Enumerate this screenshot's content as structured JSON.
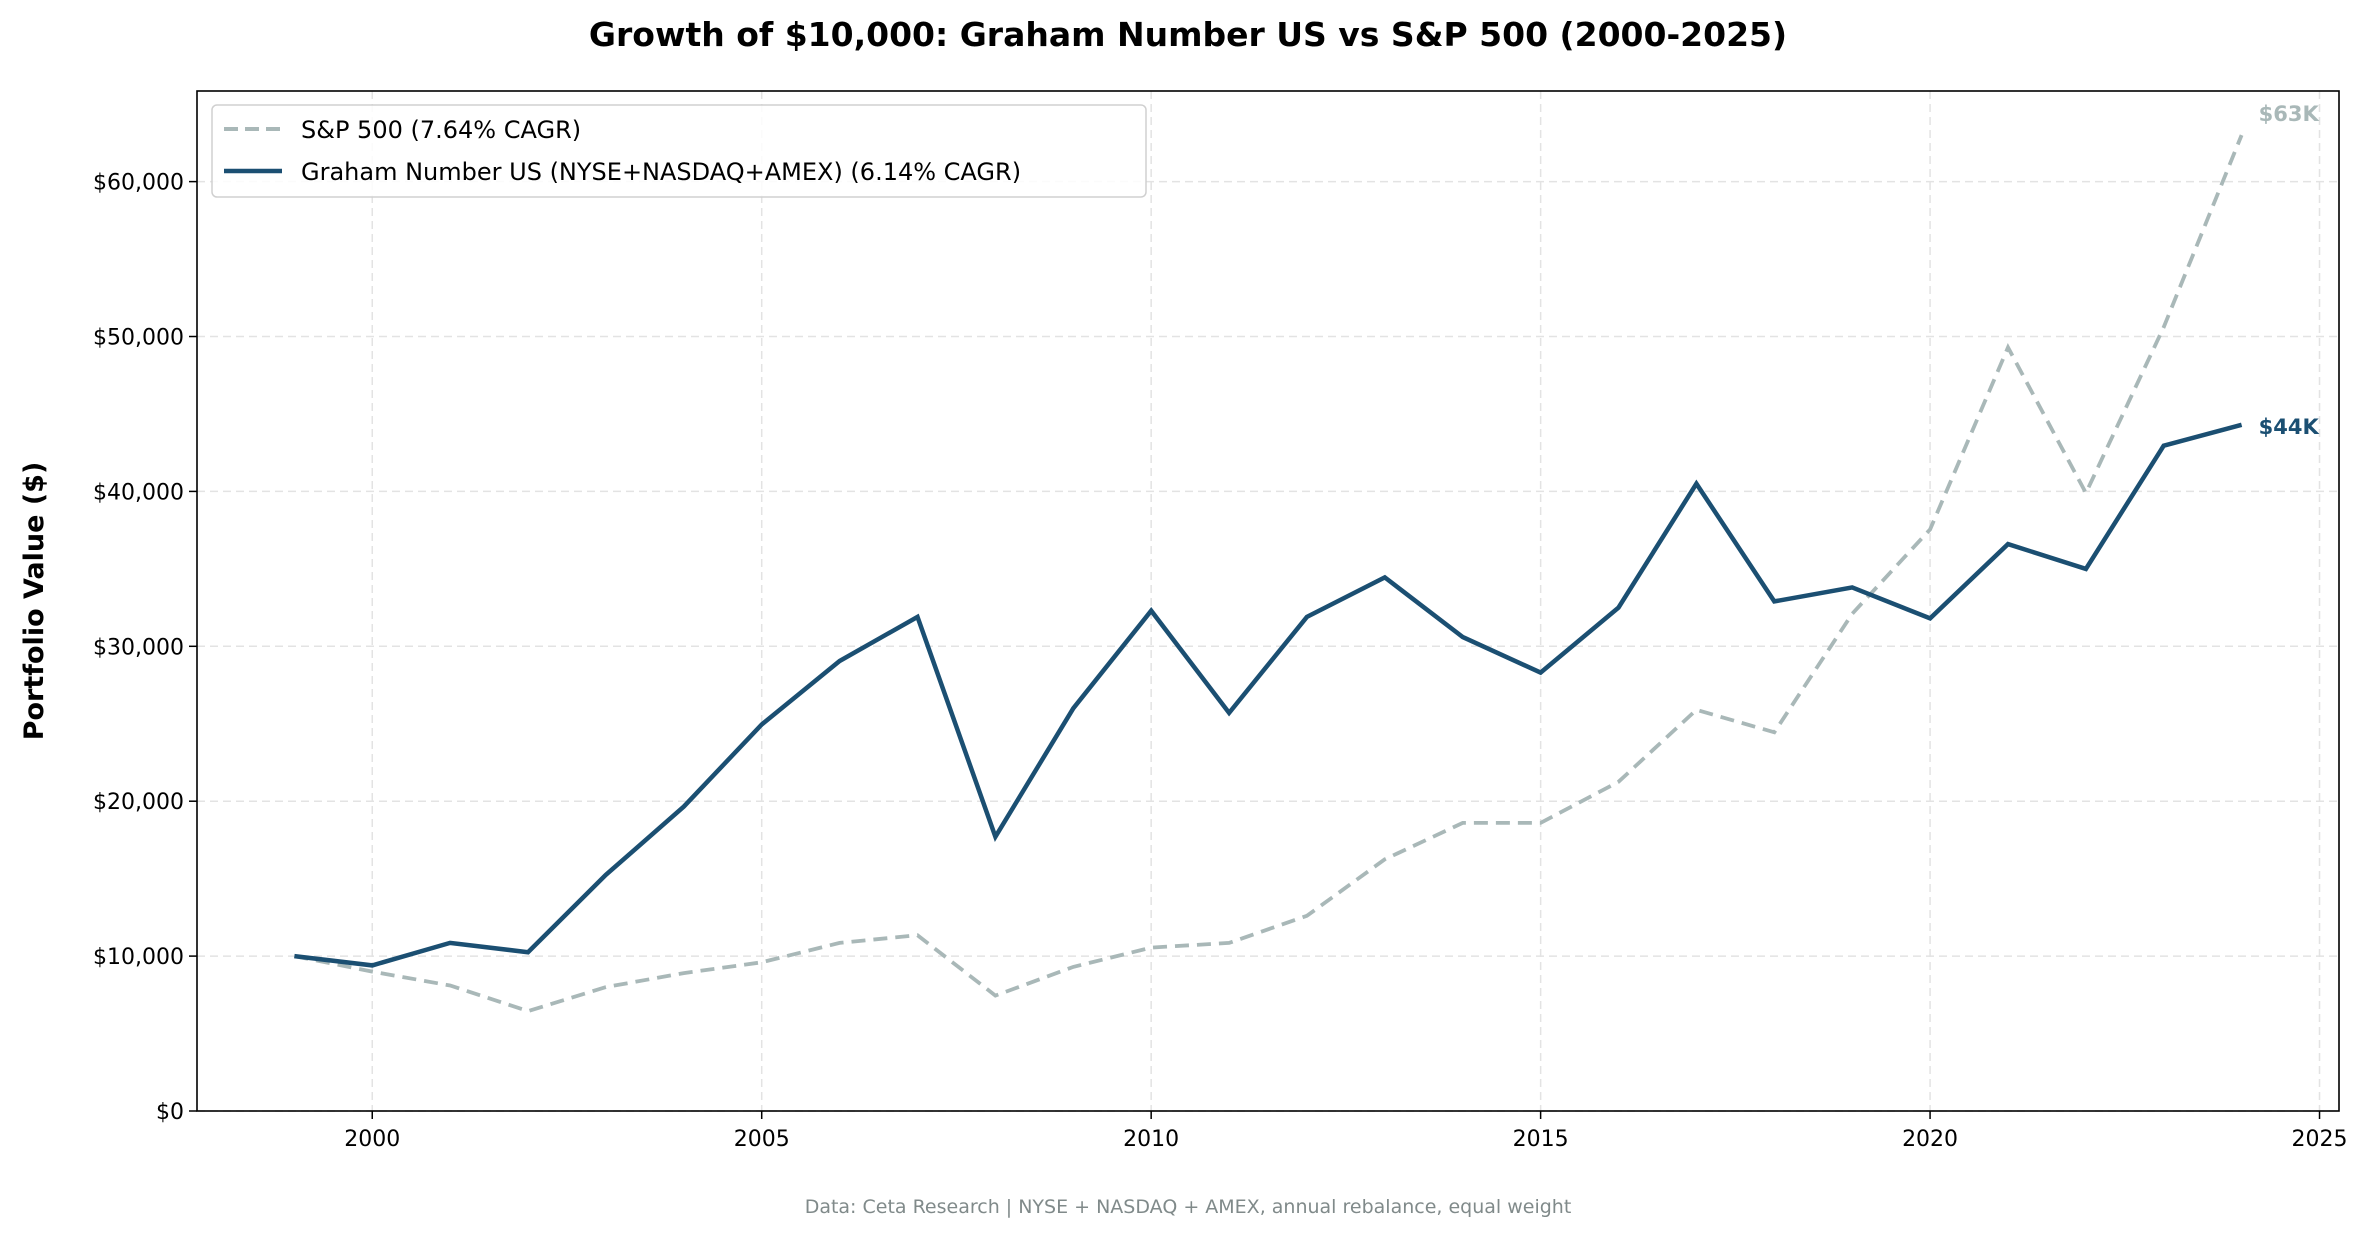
{
  "chart_data": {
    "type": "line",
    "title": "Growth of $10,000: Graham Number US vs S&P 500 (2000-2025)",
    "xlabel": "",
    "ylabel": "Portfolio Value ($)",
    "xlim": [
      1997.75,
      2025.25
    ],
    "ylim": [
      0,
      65850
    ],
    "x_ticks": [
      2000,
      2005,
      2010,
      2015,
      2020,
      2025
    ],
    "x_tick_labels": [
      "2000",
      "2005",
      "2010",
      "2015",
      "2020",
      "2025"
    ],
    "y_ticks": [
      0,
      10000,
      20000,
      30000,
      40000,
      50000,
      60000
    ],
    "y_tick_labels": [
      "$0",
      "$10,000",
      "$20,000",
      "$30,000",
      "$40,000",
      "$50,000",
      "$60,000"
    ],
    "grid": true,
    "legend_position": "top-left",
    "x": [
      1999,
      2000,
      2001,
      2002,
      2003,
      2004,
      2005,
      2006,
      2007,
      2008,
      2009,
      2010,
      2011,
      2012,
      2013,
      2014,
      2015,
      2016,
      2017,
      2018,
      2019,
      2020,
      2021,
      2022,
      2023,
      2024
    ],
    "series": [
      {
        "name": "S&P 500 (7.64% CAGR)",
        "color": "#a9b8b8",
        "style": "dashed",
        "values": [
          10000,
          9000,
          8100,
          6450,
          8000,
          8900,
          9600,
          10850,
          11350,
          7450,
          9300,
          10550,
          10850,
          12600,
          16250,
          18600,
          18600,
          21250,
          25900,
          24450,
          32100,
          37550,
          49300,
          39900,
          50600,
          63000
        ],
        "end_label": "$63K"
      },
      {
        "name": "Graham Number US (NYSE+NASDAQ+AMEX) (6.14% CAGR)",
        "color": "#1b4f72",
        "style": "solid",
        "values": [
          10000,
          9400,
          10850,
          10250,
          15250,
          19650,
          24950,
          29050,
          31900,
          17700,
          26000,
          32300,
          25700,
          31900,
          34450,
          30600,
          28300,
          32500,
          40500,
          32900,
          33800,
          31800,
          36600,
          35000,
          42950,
          44300
        ],
        "end_label": "$44K"
      }
    ],
    "footnote": "Data: Ceta Research | NYSE + NASDAQ + AMEX, annual rebalance, equal weight"
  }
}
